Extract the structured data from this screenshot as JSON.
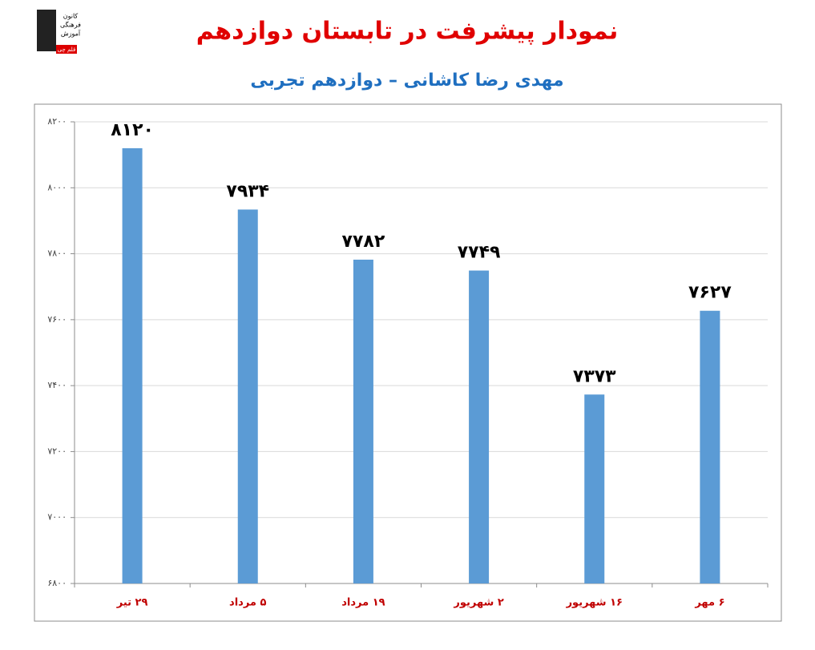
{
  "logo": {
    "lines": [
      "کانون",
      "فرهنگی",
      "آموزش",
      "قلم چی"
    ]
  },
  "chart_data": {
    "type": "bar",
    "title": "نمودار پیشرفت در تابستان دوازدهم",
    "subtitle": "مهدی رضا کاشانی – دوازدهم تجربی",
    "categories": [
      "۲۹ تیر",
      "۵ مرداد",
      "۱۹ مرداد",
      "۲ شهریور",
      "۱۶ شهریور",
      "۶ مهر"
    ],
    "values": [
      8120,
      7934,
      7782,
      7749,
      7373,
      7627
    ],
    "value_labels": [
      "۸۱۲۰",
      "۷۹۳۴",
      "۷۷۸۲",
      "۷۷۴۹",
      "۷۳۷۳",
      "۷۶۲۷"
    ],
    "color": "#5b9bd5",
    "ylim": [
      6800,
      8200
    ],
    "yticks": [
      {
        "value": 6800,
        "label": "۶۸۰۰"
      },
      {
        "value": 7000,
        "label": "۷۰۰۰"
      },
      {
        "value": 7200,
        "label": "۷۲۰۰"
      },
      {
        "value": 7400,
        "label": "۷۴۰۰"
      },
      {
        "value": 7600,
        "label": "۷۶۰۰"
      },
      {
        "value": 7800,
        "label": "۷۸۰۰"
      },
      {
        "value": 8000,
        "label": "۸۰۰۰"
      },
      {
        "value": 8200,
        "label": "۸۲۰۰"
      }
    ],
    "grid": true
  }
}
